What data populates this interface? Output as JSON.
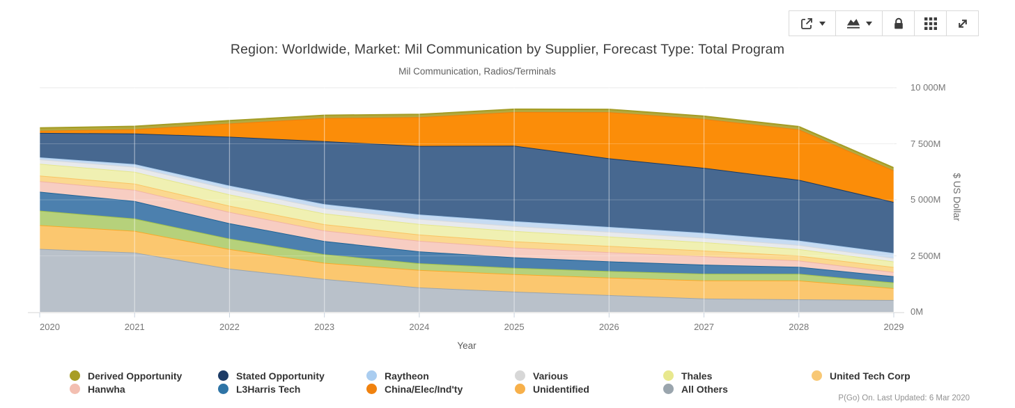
{
  "header": {
    "title": "Region: Worldwide, Market: Mil Communication by Supplier, Forecast Type: Total Program",
    "subtitle": "Mil Communication, Radios/Terminals"
  },
  "toolbar": {
    "buttons": [
      {
        "name": "export",
        "icon": "export-icon",
        "caret": true
      },
      {
        "name": "chart-type",
        "icon": "area-chart-icon",
        "caret": true
      },
      {
        "name": "lock",
        "icon": "lock-icon",
        "caret": false
      },
      {
        "name": "data-grid",
        "icon": "grid-icon",
        "caret": false
      },
      {
        "name": "fullscreen",
        "icon": "expand-icon",
        "caret": false
      }
    ]
  },
  "chart_data": {
    "type": "area",
    "stacked": true,
    "x": [
      2020,
      2021,
      2022,
      2023,
      2024,
      2025,
      2026,
      2027,
      2028,
      2029
    ],
    "xlabel": "Year",
    "ylabel": "$ US Dollar",
    "ylim": [
      0,
      10000
    ],
    "yticks": [
      {
        "value": 0,
        "label": "0M"
      },
      {
        "value": 2500,
        "label": "2 500M"
      },
      {
        "value": 5000,
        "label": "5 000M"
      },
      {
        "value": 7500,
        "label": "7 500M"
      },
      {
        "value": 10000,
        "label": "10 000M"
      }
    ],
    "units": "millions of US dollars",
    "grid": true,
    "legend_position": "bottom",
    "series_note": "series listed bottom-to-top of the stack; one green band has no visible legend entry",
    "series": [
      {
        "name": "All Others",
        "fill": "#b9c1ca",
        "stroke": "#9aa5ae",
        "values": [
          2810,
          2650,
          1930,
          1470,
          1090,
          905,
          750,
          595,
          560,
          530
        ]
      },
      {
        "name": "Unidentified",
        "fill": "#fbc76f",
        "stroke": "#f7a928",
        "values": [
          1060,
          965,
          870,
          720,
          780,
          780,
          780,
          810,
          840,
          530
        ]
      },
      {
        "name": "(unlabeled series)",
        "fill": "#b6d17b",
        "stroke": "#a2c14b",
        "values": [
          650,
          550,
          470,
          380,
          300,
          280,
          290,
          300,
          300,
          250
        ]
      },
      {
        "name": "L3Harris Tech",
        "fill": "#4c80ae",
        "stroke": "#1e6395",
        "values": [
          840,
          780,
          685,
          590,
          530,
          470,
          435,
          405,
          310,
          280
        ]
      },
      {
        "name": "Hanwha",
        "fill": "#f7cdc2",
        "stroke": "#f1b3a4",
        "values": [
          470,
          500,
          500,
          470,
          470,
          435,
          405,
          375,
          280,
          190
        ]
      },
      {
        "name": "United Tech Corp",
        "fill": "#fbd88f",
        "stroke": "#f9c464",
        "values": [
          250,
          280,
          280,
          280,
          280,
          280,
          280,
          250,
          220,
          220
        ]
      },
      {
        "name": "Thales",
        "fill": "#f0f0b2",
        "stroke": "#e4e68e",
        "values": [
          530,
          525,
          505,
          480,
          470,
          460,
          420,
          375,
          290,
          250
        ]
      },
      {
        "name": "Various",
        "fill": "#e8eaec",
        "stroke": "#d8dadc",
        "values": [
          190,
          215,
          240,
          230,
          225,
          220,
          210,
          195,
          180,
          155
        ]
      },
      {
        "name": "Raytheon",
        "fill": "#c6dbf2",
        "stroke": "#abceef",
        "values": [
          95,
          125,
          155,
          185,
          200,
          215,
          220,
          220,
          200,
          220
        ]
      },
      {
        "name": "Stated Opportunity",
        "fill": "#476890",
        "stroke": "#183a64",
        "values": [
          1090,
          1370,
          2180,
          2810,
          3060,
          3370,
          3060,
          2900,
          2710,
          2280
        ]
      },
      {
        "name": "China/Elec/Ind'ty",
        "fill": "#fb8d09",
        "stroke": "#ef7f0e",
        "values": [
          95,
          190,
          590,
          1030,
          1280,
          1500,
          2060,
          2180,
          2250,
          1400
        ]
      },
      {
        "name": "Derived Opportunity",
        "fill": "#b4a93f",
        "stroke": "#a49c24",
        "values": [
          125,
          125,
          125,
          125,
          125,
          125,
          125,
          125,
          125,
          125
        ]
      }
    ]
  },
  "legend": {
    "items": [
      {
        "label": "Derived Opportunity",
        "color": "#a89d25"
      },
      {
        "label": "Hanwha",
        "color": "#f3bfb1"
      },
      {
        "label": "Stated Opportunity",
        "color": "#1d3c66"
      },
      {
        "label": "L3Harris Tech",
        "color": "#2e74a6"
      },
      {
        "label": "Raytheon",
        "color": "#aacdf0"
      },
      {
        "label": "China/Elec/Ind'ty",
        "color": "#f0820f"
      },
      {
        "label": "Various",
        "color": "#d7d7d7"
      },
      {
        "label": "Unidentified",
        "color": "#f7b04a"
      },
      {
        "label": "Thales",
        "color": "#e8e88e"
      },
      {
        "label": "All Others",
        "color": "#9aa5ad"
      },
      {
        "label": "United Tech Corp",
        "color": "#f8c875"
      }
    ]
  },
  "footer": {
    "status_text": "P(Go) On. Last Updated: 6 Mar 2020"
  }
}
